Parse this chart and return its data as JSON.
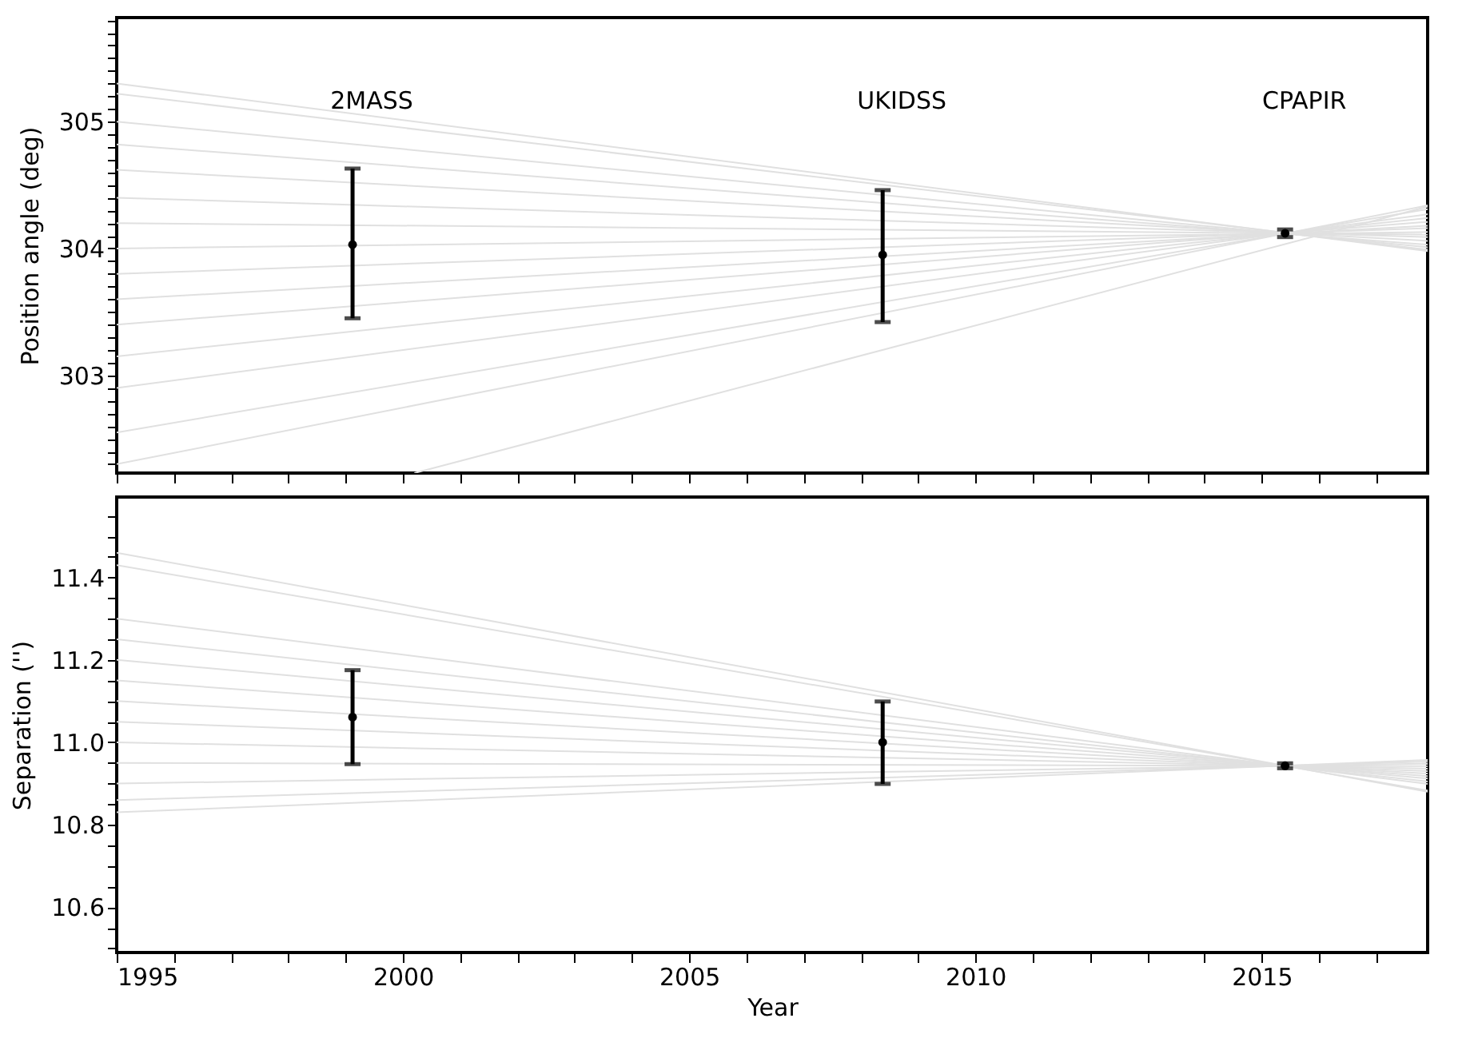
{
  "chart_data": [
    {
      "type": "line",
      "ylabel": "Position angle (deg)",
      "tick_labels": "y",
      "xlim": [
        1995,
        2017.9
      ],
      "ylim": [
        302.23,
        305.82
      ],
      "xticks": [
        1995,
        {
          "value": 1996,
          "label": null
        },
        {
          "value": 1997,
          "label": null
        },
        {
          "value": 1998,
          "label": null
        },
        {
          "value": 1999,
          "label": null
        },
        2000,
        {
          "value": 2001,
          "label": null
        },
        {
          "value": 2002,
          "label": null
        },
        {
          "value": 2003,
          "label": null
        },
        {
          "value": 2004,
          "label": null
        },
        2005,
        {
          "value": 2006,
          "label": null
        },
        {
          "value": 2007,
          "label": null
        },
        {
          "value": 2008,
          "label": null
        },
        {
          "value": 2009,
          "label": null
        },
        2010,
        {
          "value": 2011,
          "label": null
        },
        {
          "value": 2012,
          "label": null
        },
        {
          "value": 2013,
          "label": null
        },
        {
          "value": 2014,
          "label": null
        },
        2015,
        {
          "value": 2016,
          "label": null
        },
        {
          "value": 2017,
          "label": null
        }
      ],
      "yticks": [
        {
          "value": 302.3,
          "label": null
        },
        {
          "value": 302.4,
          "label": null
        },
        {
          "value": 302.5,
          "label": null
        },
        {
          "value": 302.6,
          "label": null
        },
        {
          "value": 302.7,
          "label": null
        },
        {
          "value": 302.8,
          "label": null
        },
        {
          "value": 302.9,
          "label": null
        },
        303,
        {
          "value": 303.1,
          "label": null
        },
        {
          "value": 303.2,
          "label": null
        },
        {
          "value": 303.3,
          "label": null
        },
        {
          "value": 303.4,
          "label": null
        },
        {
          "value": 303.5,
          "label": null
        },
        {
          "value": 303.6,
          "label": null
        },
        {
          "value": 303.7,
          "label": null
        },
        {
          "value": 303.8,
          "label": null
        },
        {
          "value": 303.9,
          "label": null
        },
        304,
        {
          "value": 304.1,
          "label": null
        },
        {
          "value": 304.2,
          "label": null
        },
        {
          "value": 304.3,
          "label": null
        },
        {
          "value": 304.4,
          "label": null
        },
        {
          "value": 304.5,
          "label": null
        },
        {
          "value": 304.6,
          "label": null
        },
        {
          "value": 304.7,
          "label": null
        },
        {
          "value": 304.8,
          "label": null
        },
        {
          "value": 304.9,
          "label": null
        },
        305,
        {
          "value": 305.1,
          "label": null
        },
        {
          "value": 305.2,
          "label": null
        },
        {
          "value": 305.3,
          "label": null
        },
        {
          "value": 305.4,
          "label": null
        },
        {
          "value": 305.5,
          "label": null
        },
        {
          "value": 305.6,
          "label": null
        },
        {
          "value": 305.7,
          "label": null
        },
        {
          "value": 305.8,
          "label": null
        }
      ],
      "series": [
        {
          "type": "line",
          "color": "#e0e0e0",
          "x": [
            1995,
            2017.9
          ],
          "values": [
            305.3,
            303.98
          ]
        },
        {
          "type": "line",
          "color": "#e0e0e0",
          "x": [
            1995,
            2017.9
          ],
          "values": [
            305.22,
            303.99
          ]
        },
        {
          "type": "line",
          "color": "#e0e0e0",
          "x": [
            1995,
            2017.9
          ],
          "values": [
            305.0,
            304.01
          ]
        },
        {
          "type": "line",
          "color": "#e0e0e0",
          "x": [
            1995,
            2017.9
          ],
          "values": [
            304.82,
            304.03
          ]
        },
        {
          "type": "line",
          "color": "#e0e0e0",
          "x": [
            1995,
            2017.9
          ],
          "values": [
            304.62,
            304.06
          ]
        },
        {
          "type": "line",
          "color": "#e0e0e0",
          "x": [
            1995,
            2017.9
          ],
          "values": [
            304.4,
            304.09
          ]
        },
        {
          "type": "line",
          "color": "#e0e0e0",
          "x": [
            1995,
            2017.9
          ],
          "values": [
            304.2,
            304.11
          ]
        },
        {
          "type": "line",
          "color": "#e0e0e0",
          "x": [
            1995,
            2017.9
          ],
          "values": [
            304.0,
            304.13
          ]
        },
        {
          "type": "line",
          "color": "#e0e0e0",
          "x": [
            1995,
            2017.9
          ],
          "values": [
            303.8,
            304.16
          ]
        },
        {
          "type": "line",
          "color": "#e0e0e0",
          "x": [
            1995,
            2017.9
          ],
          "values": [
            303.6,
            304.18
          ]
        },
        {
          "type": "line",
          "color": "#e0e0e0",
          "x": [
            1995,
            2017.9
          ],
          "values": [
            303.4,
            304.21
          ]
        },
        {
          "type": "line",
          "color": "#e0e0e0",
          "x": [
            1995,
            2017.9
          ],
          "values": [
            303.15,
            304.24
          ]
        },
        {
          "type": "line",
          "color": "#e0e0e0",
          "x": [
            1995,
            2017.9
          ],
          "values": [
            302.9,
            304.27
          ]
        },
        {
          "type": "line",
          "color": "#e0e0e0",
          "x": [
            1995,
            2017.9
          ],
          "values": [
            302.55,
            304.31
          ]
        },
        {
          "type": "line",
          "color": "#e0e0e0",
          "x": [
            1995,
            2017.9
          ],
          "values": [
            302.3,
            304.34
          ]
        },
        {
          "type": "line",
          "color": "#e0e0e0",
          "x": [
            2000.2,
            2017.9
          ],
          "values": [
            302.23,
            304.33
          ]
        },
        {
          "type": "scatter",
          "color": "#000000",
          "marker": "circle",
          "x": [
            1999.12,
            2008.38,
            2015.41
          ],
          "values": [
            304.03,
            303.95,
            304.12
          ],
          "errors": [
            [
              303.45,
              304.63
            ],
            [
              303.42,
              304.46
            ],
            [
              304.09,
              304.15
            ]
          ]
        }
      ],
      "annotations": [
        "2MASS",
        "UKIDSS",
        "CPAPIR"
      ]
    },
    {
      "type": "line",
      "ylabel": "Separation ('')",
      "xlabel": "Year",
      "xlim": [
        1995,
        2017.9
      ],
      "ylim": [
        10.49,
        11.595
      ],
      "xticks": [
        1995,
        {
          "value": 1996,
          "label": null
        },
        {
          "value": 1997,
          "label": null
        },
        {
          "value": 1998,
          "label": null
        },
        {
          "value": 1999,
          "label": null
        },
        2000,
        {
          "value": 2001,
          "label": null
        },
        {
          "value": 2002,
          "label": null
        },
        {
          "value": 2003,
          "label": null
        },
        {
          "value": 2004,
          "label": null
        },
        2005,
        {
          "value": 2006,
          "label": null
        },
        {
          "value": 2007,
          "label": null
        },
        {
          "value": 2008,
          "label": null
        },
        {
          "value": 2009,
          "label": null
        },
        2010,
        {
          "value": 2011,
          "label": null
        },
        {
          "value": 2012,
          "label": null
        },
        {
          "value": 2013,
          "label": null
        },
        {
          "value": 2014,
          "label": null
        },
        2015,
        {
          "value": 2016,
          "label": null
        },
        {
          "value": 2017,
          "label": null
        }
      ],
      "yticks": [
        {
          "value": 10.5,
          "label": null
        },
        {
          "value": 10.55,
          "label": null
        },
        10.6,
        {
          "value": 10.65,
          "label": null
        },
        {
          "value": 10.7,
          "label": null
        },
        {
          "value": 10.75,
          "label": null
        },
        10.8,
        {
          "value": 10.85,
          "label": null
        },
        {
          "value": 10.9,
          "label": null
        },
        {
          "value": 10.95,
          "label": null
        },
        {
          "value": 11.0,
          "label": "11.0"
        },
        {
          "value": 11.05,
          "label": null
        },
        {
          "value": 11.1,
          "label": null
        },
        {
          "value": 11.15,
          "label": null
        },
        11.2,
        {
          "value": 11.25,
          "label": null
        },
        {
          "value": 11.3,
          "label": null
        },
        {
          "value": 11.35,
          "label": null
        },
        11.4,
        {
          "value": 11.45,
          "label": null
        },
        {
          "value": 11.5,
          "label": null
        },
        {
          "value": 11.55,
          "label": null
        }
      ],
      "series": [
        {
          "type": "line",
          "color": "#e0e0e0",
          "x": [
            1995,
            2017.9
          ],
          "values": [
            11.46,
            10.88
          ]
        },
        {
          "type": "line",
          "color": "#e0e0e0",
          "x": [
            1995,
            2017.9
          ],
          "values": [
            11.43,
            10.883
          ]
        },
        {
          "type": "line",
          "color": "#e0e0e0",
          "x": [
            1995,
            2017.9
          ],
          "values": [
            11.3,
            10.899
          ]
        },
        {
          "type": "line",
          "color": "#e0e0e0",
          "x": [
            1995,
            2017.9
          ],
          "values": [
            11.25,
            10.905
          ]
        },
        {
          "type": "line",
          "color": "#e0e0e0",
          "x": [
            1995,
            2017.9
          ],
          "values": [
            11.2,
            10.912
          ]
        },
        {
          "type": "line",
          "color": "#e0e0e0",
          "x": [
            1995,
            2017.9
          ],
          "values": [
            11.15,
            10.918
          ]
        },
        {
          "type": "line",
          "color": "#e0e0e0",
          "x": [
            1995,
            2017.9
          ],
          "values": [
            11.1,
            10.924
          ]
        },
        {
          "type": "line",
          "color": "#e0e0e0",
          "x": [
            1995,
            2017.9
          ],
          "values": [
            11.05,
            10.93
          ]
        },
        {
          "type": "line",
          "color": "#e0e0e0",
          "x": [
            1995,
            2017.9
          ],
          "values": [
            11.0,
            10.936
          ]
        },
        {
          "type": "line",
          "color": "#e0e0e0",
          "x": [
            1995,
            2017.9
          ],
          "values": [
            10.95,
            10.942
          ]
        },
        {
          "type": "line",
          "color": "#e0e0e0",
          "x": [
            1995,
            2017.9
          ],
          "values": [
            10.9,
            10.948
          ]
        },
        {
          "type": "line",
          "color": "#e0e0e0",
          "x": [
            1995,
            2017.9
          ],
          "values": [
            10.86,
            10.953
          ]
        },
        {
          "type": "line",
          "color": "#e0e0e0",
          "x": [
            1995,
            2017.9
          ],
          "values": [
            10.83,
            10.957
          ]
        },
        {
          "type": "scatter",
          "color": "#000000",
          "marker": "circle",
          "x": [
            1999.12,
            2008.38,
            2015.41
          ],
          "values": [
            11.061,
            11.0,
            10.943
          ],
          "errors": [
            [
              10.947,
              11.175
            ],
            [
              10.899,
              11.099
            ],
            [
              10.937,
              10.949
            ]
          ]
        }
      ]
    }
  ]
}
